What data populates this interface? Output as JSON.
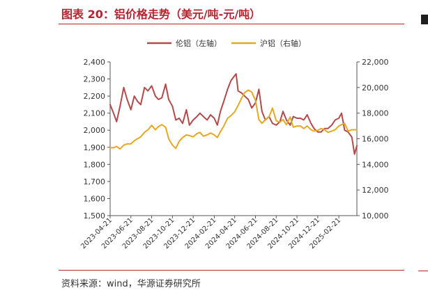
{
  "header": {
    "title": "图表 20：铝价格走势（美元/吨-元/吨）"
  },
  "footer": {
    "source": "资料来源：wind，华源证券研究所"
  },
  "colors": {
    "accent": "#b7232e",
    "lme": "#b14a4a",
    "shfe": "#e5a823",
    "axis": "#555555"
  },
  "chart_data": {
    "type": "line",
    "title": "",
    "legend": {
      "placement": "top-center"
    },
    "grid": false,
    "x_ticks": [
      "2023-04-21",
      "2023-06-21",
      "2023-08-21",
      "2023-10-21",
      "2023-12-21",
      "2024-02-21",
      "2024-04-21",
      "2024-06-21",
      "2024-08-21",
      "2024-10-21",
      "2024-12-21",
      "2025-02-21"
    ],
    "x_range": [
      "2023-04-21",
      "2025-04-15"
    ],
    "y_left": {
      "label": "",
      "ylim": [
        1500,
        2400
      ],
      "ticks": [
        "1,500",
        "1,600",
        "1,700",
        "1,800",
        "1,900",
        "2,000",
        "2,100",
        "2,200",
        "2,300",
        "2,400"
      ]
    },
    "y_right": {
      "label": "",
      "ylim": [
        10000,
        22000
      ],
      "ticks": [
        "10,000",
        "12,000",
        "14,000",
        "16,000",
        "18,000",
        "20,000",
        "22,000"
      ]
    },
    "series": [
      {
        "name": "伦铝（左轴）",
        "axis": "left",
        "color": "#b14a4a",
        "x": [
          "2023-04-21",
          "2023-05-01",
          "2023-05-10",
          "2023-05-20",
          "2023-05-31",
          "2023-06-10",
          "2023-06-21",
          "2023-07-01",
          "2023-07-10",
          "2023-07-20",
          "2023-07-31",
          "2023-08-10",
          "2023-08-21",
          "2023-09-01",
          "2023-09-10",
          "2023-09-20",
          "2023-10-01",
          "2023-10-10",
          "2023-10-21",
          "2023-10-31",
          "2023-11-10",
          "2023-11-20",
          "2023-12-01",
          "2023-12-10",
          "2023-12-21",
          "2024-01-01",
          "2024-01-10",
          "2024-01-20",
          "2024-01-31",
          "2024-02-10",
          "2024-02-21",
          "2024-03-01",
          "2024-03-10",
          "2024-03-20",
          "2024-03-31",
          "2024-04-10",
          "2024-04-21",
          "2024-04-25",
          "2024-05-01",
          "2024-05-10",
          "2024-05-20",
          "2024-05-31",
          "2024-06-10",
          "2024-06-21",
          "2024-07-01",
          "2024-07-10",
          "2024-07-20",
          "2024-07-31",
          "2024-08-10",
          "2024-08-21",
          "2024-09-01",
          "2024-09-10",
          "2024-09-20",
          "2024-10-01",
          "2024-10-10",
          "2024-10-21",
          "2024-10-31",
          "2024-11-10",
          "2024-11-20",
          "2024-12-01",
          "2024-12-10",
          "2024-12-21",
          "2024-12-31",
          "2025-01-10",
          "2025-01-20",
          "2025-01-31",
          "2025-02-10",
          "2025-02-21",
          "2025-03-01",
          "2025-03-10",
          "2025-03-20",
          "2025-03-31",
          "2025-04-08",
          "2025-04-15"
        ],
        "values": [
          2150,
          2100,
          2050,
          2140,
          2250,
          2180,
          2120,
          2200,
          2170,
          2150,
          2250,
          2230,
          2260,
          2200,
          2180,
          2190,
          2270,
          2180,
          2140,
          2060,
          2070,
          2040,
          2120,
          2030,
          2060,
          2080,
          2100,
          2080,
          2060,
          2090,
          2070,
          2030,
          2110,
          2170,
          2240,
          2290,
          2320,
          2330,
          2230,
          2220,
          2200,
          2180,
          2130,
          2160,
          2240,
          2110,
          2060,
          2080,
          2040,
          2030,
          2050,
          2110,
          2060,
          2030,
          2080,
          2070,
          2070,
          2060,
          2090,
          2040,
          2010,
          1990,
          1990,
          2010,
          2010,
          2030,
          2060,
          2070,
          2100,
          2000,
          1990,
          1960,
          1860,
          1910
        ]
      },
      {
        "name": "沪铝（右轴）",
        "axis": "right",
        "color": "#e5a823",
        "x": [
          "2023-04-21",
          "2023-05-01",
          "2023-05-10",
          "2023-05-20",
          "2023-05-31",
          "2023-06-10",
          "2023-06-21",
          "2023-07-01",
          "2023-07-10",
          "2023-07-20",
          "2023-07-31",
          "2023-08-10",
          "2023-08-21",
          "2023-09-01",
          "2023-09-10",
          "2023-09-20",
          "2023-10-01",
          "2023-10-10",
          "2023-10-21",
          "2023-10-31",
          "2023-11-10",
          "2023-11-20",
          "2023-12-01",
          "2023-12-10",
          "2023-12-21",
          "2024-01-01",
          "2024-01-10",
          "2024-01-20",
          "2024-01-31",
          "2024-02-10",
          "2024-02-21",
          "2024-03-01",
          "2024-03-10",
          "2024-03-20",
          "2024-03-31",
          "2024-04-10",
          "2024-04-21",
          "2024-05-01",
          "2024-05-10",
          "2024-05-20",
          "2024-05-31",
          "2024-06-10",
          "2024-06-21",
          "2024-07-01",
          "2024-07-10",
          "2024-07-20",
          "2024-07-31",
          "2024-08-10",
          "2024-08-21",
          "2024-09-01",
          "2024-09-10",
          "2024-09-20",
          "2024-10-01",
          "2024-10-10",
          "2024-10-21",
          "2024-10-31",
          "2024-11-10",
          "2024-11-20",
          "2024-12-01",
          "2024-12-10",
          "2024-12-21",
          "2024-12-31",
          "2025-01-10",
          "2025-01-20",
          "2025-01-31",
          "2025-02-10",
          "2025-02-21",
          "2025-03-01",
          "2025-03-10",
          "2025-03-20",
          "2025-03-31",
          "2025-04-08",
          "2025-04-15"
        ],
        "values": [
          15300,
          15300,
          15400,
          15200,
          15500,
          15600,
          15600,
          15850,
          16000,
          16150,
          16500,
          16700,
          17050,
          16700,
          16950,
          17100,
          16900,
          16000,
          15500,
          15250,
          15800,
          16100,
          16300,
          16250,
          16150,
          16400,
          16500,
          16200,
          16300,
          16450,
          16300,
          16100,
          16550,
          17000,
          17600,
          17800,
          18100,
          18600,
          19100,
          19600,
          19800,
          19650,
          19000,
          17500,
          17200,
          17500,
          17700,
          18400,
          17400,
          17300,
          17500,
          17100,
          17700,
          16900,
          17000,
          17000,
          16800,
          17000,
          16700,
          16600,
          16650,
          16800,
          16700,
          16500,
          16600,
          16700,
          17000,
          17100,
          17200,
          16600,
          16700,
          16700,
          16700
        ]
      }
    ]
  }
}
